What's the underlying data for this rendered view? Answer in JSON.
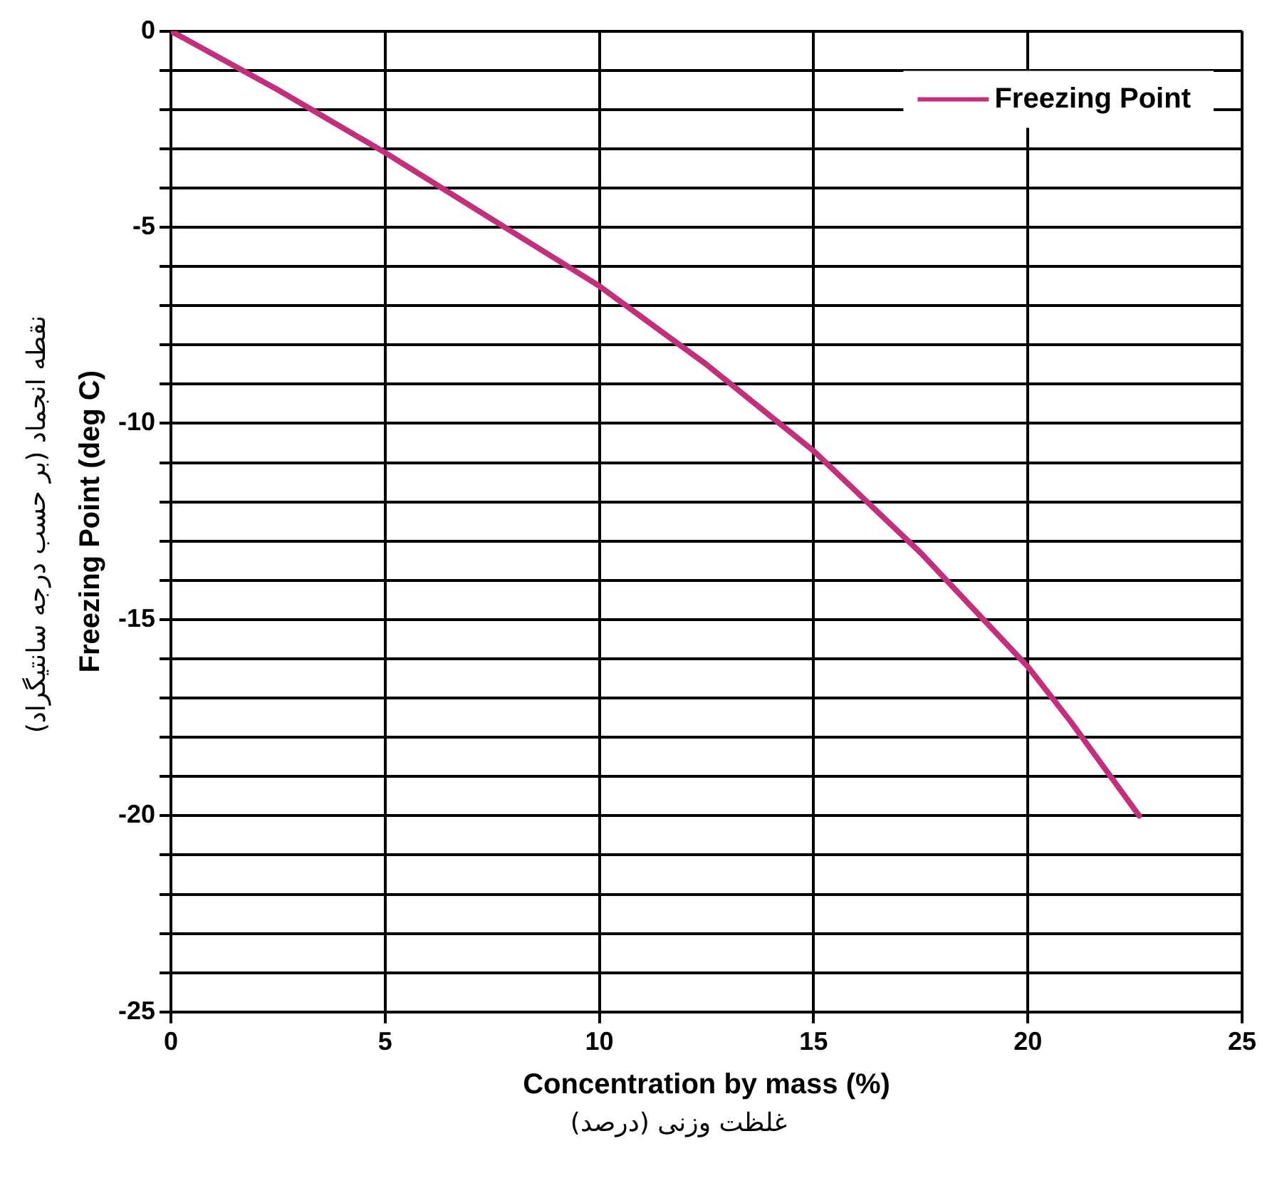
{
  "chart_data": {
    "type": "line",
    "xlabel": "Concentration by mass (%)",
    "ylabel": "Freezing Point (deg C)",
    "annotations": [
      "نقطه انجماد (بر حسب درجه سانتیگراد)",
      "غلظت وزنی (درصد)"
    ],
    "series": [
      {
        "name": "Freezing Point",
        "color": "#c2307c",
        "x": [
          0,
          2.5,
          5,
          7.5,
          10,
          12.5,
          15,
          17.5,
          20,
          21,
          22.6
        ],
        "values": [
          0,
          -1.5,
          -3.1,
          -4.8,
          -6.5,
          -8.5,
          -10.7,
          -13.3,
          -16.2,
          -17.6,
          -20.0
        ]
      }
    ],
    "xlim": [
      0,
      25
    ],
    "xticks": [
      0,
      5,
      10,
      15,
      20,
      25
    ],
    "ylim": [
      -25,
      0
    ],
    "yticks": [
      -25,
      {
        "value": -24,
        "label": null
      },
      {
        "value": -23,
        "label": null
      },
      {
        "value": -22,
        "label": null
      },
      {
        "value": -21,
        "label": null
      },
      -20,
      {
        "value": -19,
        "label": null
      },
      {
        "value": -18,
        "label": null
      },
      {
        "value": -17,
        "label": null
      },
      {
        "value": -16,
        "label": null
      },
      -15,
      {
        "value": -14,
        "label": null
      },
      {
        "value": -13,
        "label": null
      },
      {
        "value": -12,
        "label": null
      },
      {
        "value": -11,
        "label": null
      },
      -10,
      {
        "value": -9,
        "label": null
      },
      {
        "value": -8,
        "label": null
      },
      {
        "value": -7,
        "label": null
      },
      {
        "value": -6,
        "label": null
      },
      -5,
      {
        "value": -4,
        "label": null
      },
      {
        "value": -3,
        "label": null
      },
      {
        "value": -2,
        "label": null
      },
      {
        "value": -1,
        "label": null
      },
      0
    ],
    "grid": true,
    "legend": "top right",
    "marker": "none",
    "line_style": "solid"
  }
}
